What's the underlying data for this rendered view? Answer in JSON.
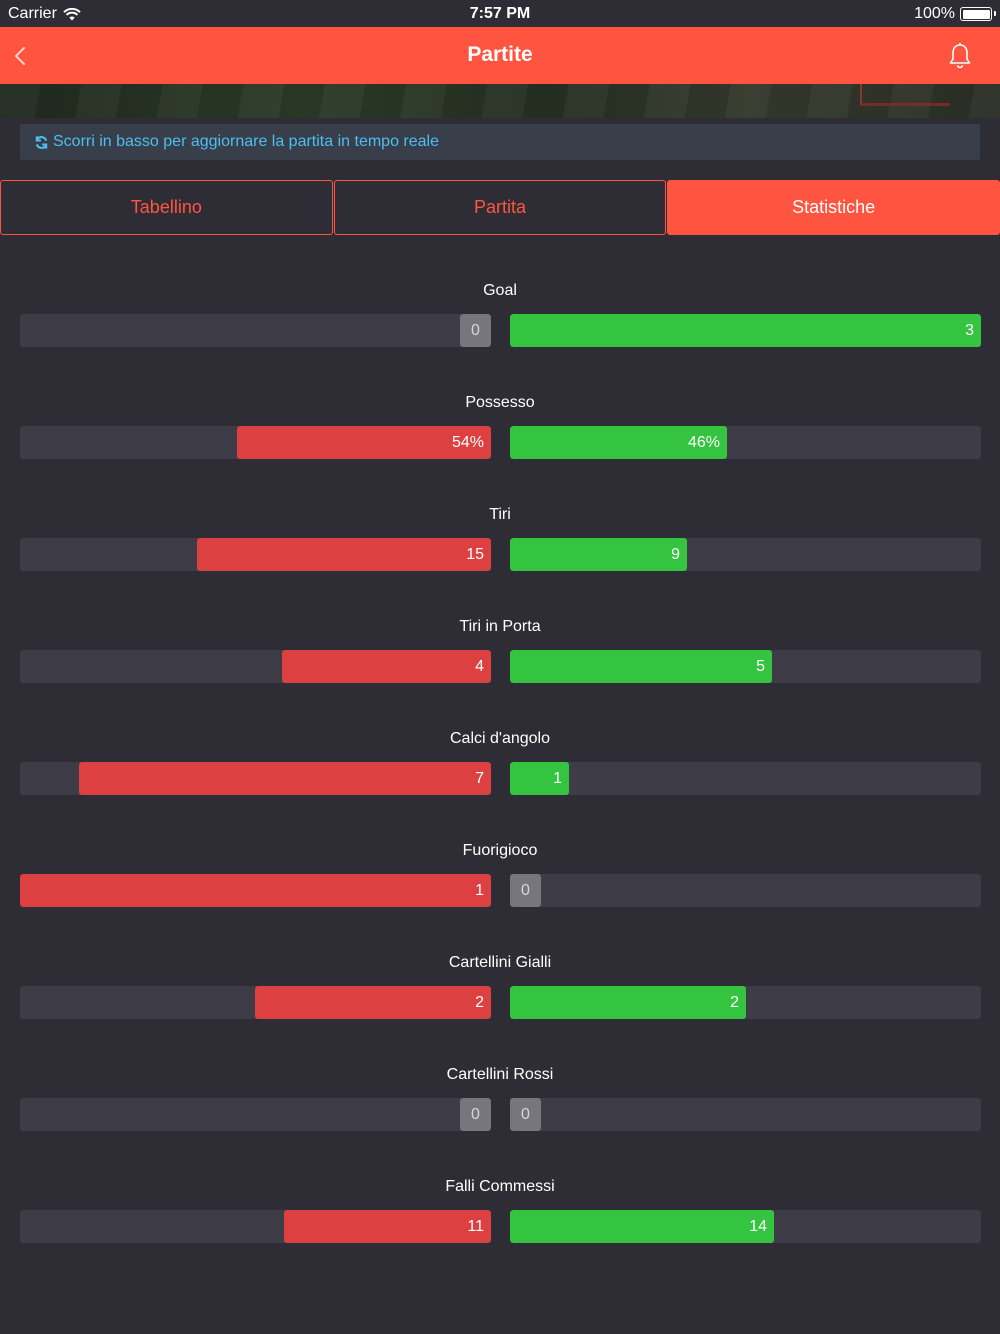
{
  "status_bar": {
    "carrier": "Carrier",
    "time": "7:57 PM",
    "battery": "100%"
  },
  "navbar": {
    "title": "Partite"
  },
  "info": {
    "text": "Scorri in basso per aggiornare la partita in tempo reale"
  },
  "tabs": [
    {
      "label": "Tabellino",
      "active": false
    },
    {
      "label": "Partita",
      "active": false
    },
    {
      "label": "Statistiche",
      "active": true
    }
  ],
  "colors": {
    "accent": "#ff5440",
    "home_bar": "#dd4040",
    "away_bar": "#34c43f",
    "info_text": "#4cbff0",
    "background": "#2e2d35"
  },
  "stats": [
    {
      "name": "Goal",
      "home": "0",
      "away": "3",
      "home_fraction": 0.0,
      "away_fraction": 1.0
    },
    {
      "name": "Possesso",
      "home": "54%",
      "away": "46%",
      "home_fraction": 0.54,
      "away_fraction": 0.46
    },
    {
      "name": "Tiri",
      "home": "15",
      "away": "9",
      "home_fraction": 0.625,
      "away_fraction": 0.375
    },
    {
      "name": "Tiri in Porta",
      "home": "4",
      "away": "5",
      "home_fraction": 0.444,
      "away_fraction": 0.556
    },
    {
      "name": "Calci d'angolo",
      "home": "7",
      "away": "1",
      "home_fraction": 0.875,
      "away_fraction": 0.125
    },
    {
      "name": "Fuorigioco",
      "home": "1",
      "away": "0",
      "home_fraction": 1.0,
      "away_fraction": 0.0
    },
    {
      "name": "Cartellini Gialli",
      "home": "2",
      "away": "2",
      "home_fraction": 0.5,
      "away_fraction": 0.5
    },
    {
      "name": "Cartellini Rossi",
      "home": "0",
      "away": "0",
      "home_fraction": 0.0,
      "away_fraction": 0.0
    },
    {
      "name": "Falli Commessi",
      "home": "11",
      "away": "14",
      "home_fraction": 0.44,
      "away_fraction": 0.56
    }
  ]
}
